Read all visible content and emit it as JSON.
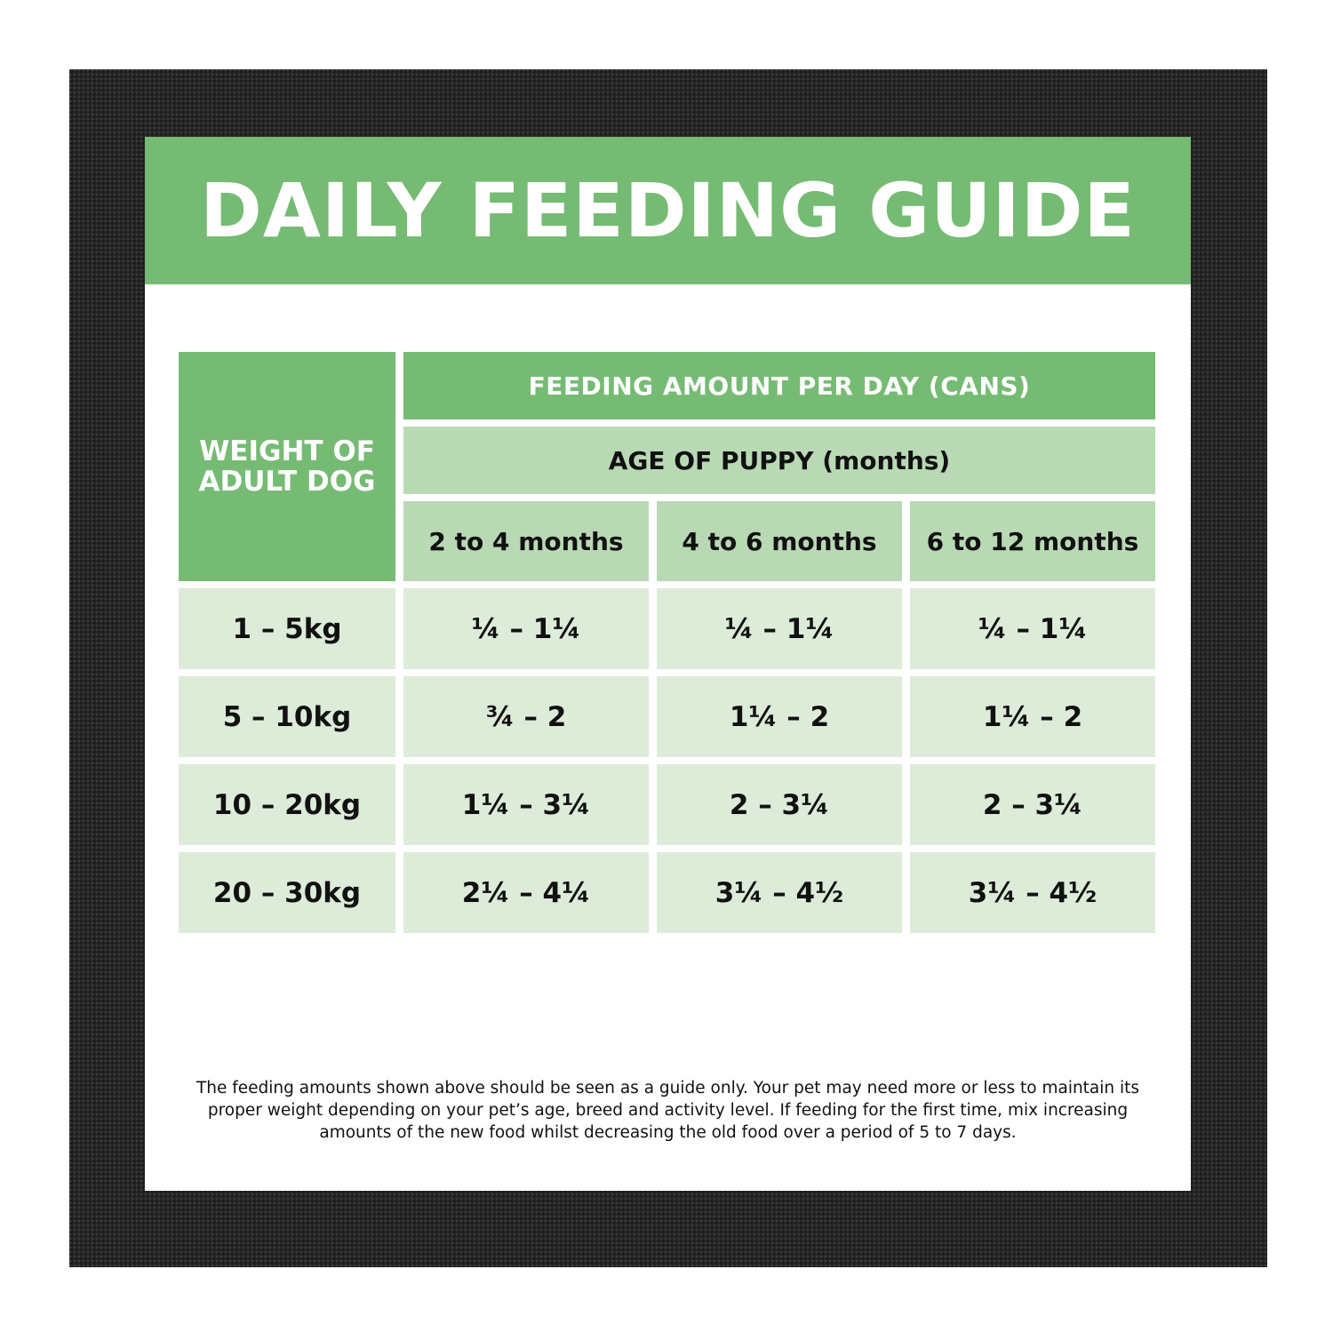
{
  "colors": {
    "dark_green": "#76bb74",
    "mid_green": "#b9d9b5",
    "light_green": "#dcecd9",
    "frame": "#262626"
  },
  "title": "DAILY FEEDING GUIDE",
  "table": {
    "weight_header": "WEIGHT OF ADULT DOG",
    "feeding_header": "FEEDING AMOUNT PER DAY (CANS)",
    "age_header": "AGE OF PUPPY (months)",
    "columns": [
      "2 to 4 months",
      "4 to 6 months",
      "6 to 12 months"
    ],
    "rows": [
      {
        "weight": "1 – 5kg",
        "values": [
          "¼ – 1¼",
          "¼ – 1¼",
          "¼ – 1¼"
        ]
      },
      {
        "weight": "5 – 10kg",
        "values": [
          "¾ – 2",
          "1¼ – 2",
          "1¼ – 2"
        ]
      },
      {
        "weight": "10 – 20kg",
        "values": [
          "1¼ – 3¼",
          "2 – 3¼",
          "2 – 3¼"
        ]
      },
      {
        "weight": "20 – 30kg",
        "values": [
          "2¼ – 4¼",
          "3¼ – 4½",
          "3¼ – 4½"
        ]
      }
    ]
  },
  "footnote": "The feeding amounts shown above should be seen as a guide only. Your pet may need more or less to maintain its proper weight depending on your pet’s age, breed and activity level. If feeding for the first time, mix increasing amounts of the new food whilst decreasing the old food over a period of 5 to 7 days."
}
